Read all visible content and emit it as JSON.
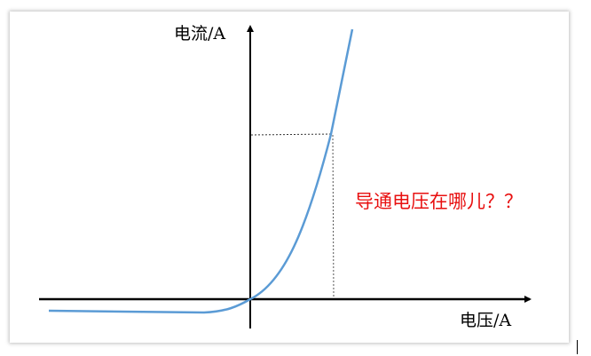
{
  "diagram": {
    "y_axis_label": "电流/A",
    "x_axis_label": "电压/A",
    "annotation": "导通电压在哪儿？？",
    "colors": {
      "curve": "#5b9bd5",
      "annotation": "#e81010",
      "axes": "#000000"
    }
  }
}
